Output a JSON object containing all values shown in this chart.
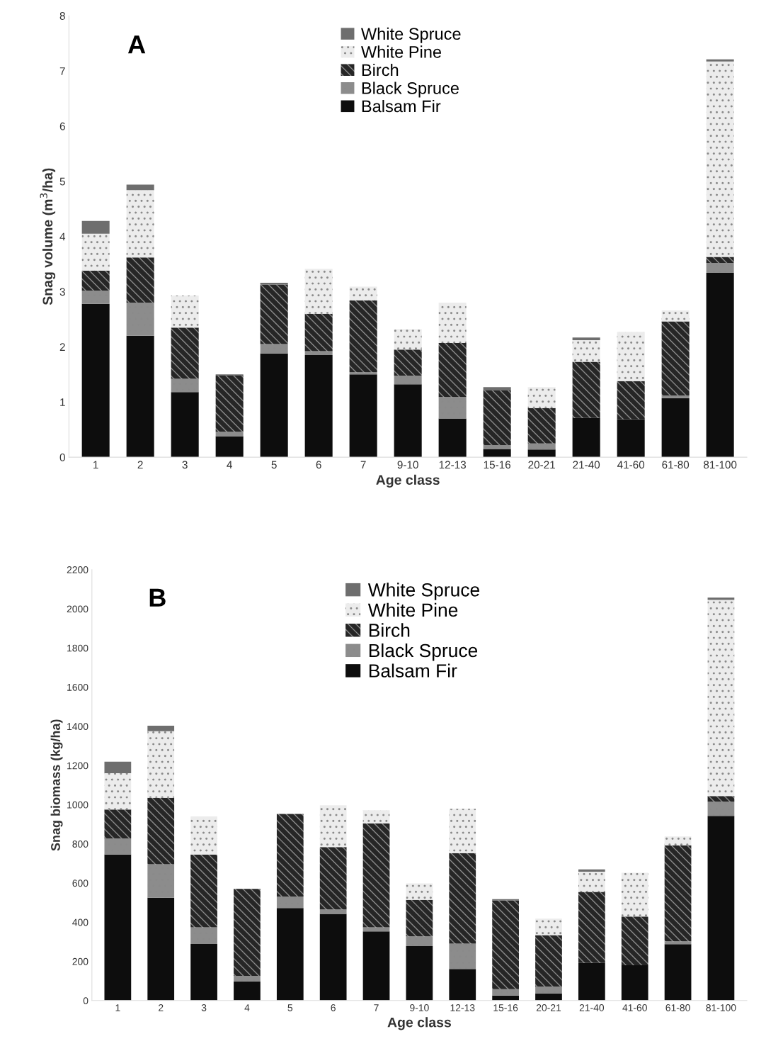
{
  "chart_data": [
    {
      "type": "bar",
      "title": "A",
      "xlabel": "Age class",
      "ylabel": "Snag volume (m$^{3}$/ha)",
      "stacked": true,
      "legend": "top",
      "grid": false,
      "categories": [
        "1",
        "2",
        "3",
        "4",
        "5",
        "6",
        "7",
        "9-10",
        "12-13",
        "15-16",
        "20-21",
        "21-40",
        "41-60",
        "61-80",
        "81-100"
      ],
      "ylim": [
        0,
        8
      ],
      "yticks": [
        0,
        1,
        2,
        3,
        4,
        5,
        6,
        7,
        8
      ],
      "series": [
        {
          "name": "Balsam Fir",
          "color": "#0d0d0d",
          "values": [
            2.78,
            2.2,
            1.18,
            0.38,
            1.88,
            1.85,
            1.5,
            1.32,
            0.7,
            0.15,
            0.14,
            0.71,
            0.69,
            1.07,
            3.34
          ]
        },
        {
          "name": "Black Spruce",
          "color": "#8c8c8c",
          "values": [
            0.24,
            0.6,
            0.24,
            0.08,
            0.17,
            0.07,
            0.04,
            0.16,
            0.39,
            0.07,
            0.11,
            0,
            0,
            0.05,
            0.18
          ]
        },
        {
          "name": "Birch",
          "color": "#262626",
          "values": [
            0.36,
            0.82,
            0.93,
            1.02,
            1.08,
            0.68,
            1.3,
            0.47,
            0.98,
            0.99,
            0.64,
            1.02,
            0.69,
            1.34,
            0.11
          ]
        },
        {
          "name": "White Pine",
          "color": "#ececec",
          "values": [
            0.67,
            1.22,
            0.58,
            0,
            0,
            0.81,
            0.25,
            0.37,
            0.73,
            0,
            0.38,
            0.39,
            0.89,
            0.2,
            3.54
          ]
        },
        {
          "name": "White Spruce",
          "color": "#6e6e6e",
          "values": [
            0.23,
            0.1,
            0,
            0.02,
            0.03,
            0,
            0,
            0,
            0,
            0.06,
            0,
            0.05,
            0,
            0,
            0.04
          ]
        }
      ]
    },
    {
      "type": "bar",
      "title": "B",
      "xlabel": "Age class",
      "ylabel": "Snag biomass (kg/ha)",
      "stacked": true,
      "legend": "top",
      "grid": false,
      "categories": [
        "1",
        "2",
        "3",
        "4",
        "5",
        "6",
        "7",
        "9-10",
        "12-13",
        "15-16",
        "20-21",
        "21-40",
        "41-60",
        "61-80",
        "81-100"
      ],
      "ylim": [
        0,
        2200
      ],
      "yticks": [
        0,
        200,
        400,
        600,
        800,
        1000,
        1200,
        1400,
        1600,
        1800,
        2000,
        2200
      ],
      "series": [
        {
          "name": "Balsam Fir",
          "color": "#0d0d0d",
          "values": [
            746,
            525,
            289,
            98,
            472,
            443,
            353,
            278,
            161,
            26,
            36,
            192,
            180,
            288,
            943
          ]
        },
        {
          "name": "Black Spruce",
          "color": "#8c8c8c",
          "values": [
            82,
            171,
            85,
            28,
            59,
            22,
            21,
            50,
            130,
            32,
            36,
            0,
            0,
            14,
            72
          ]
        },
        {
          "name": "Birch",
          "color": "#262626",
          "values": [
            147,
            339,
            372,
            444,
            422,
            319,
            531,
            186,
            462,
            453,
            262,
            363,
            249,
            490,
            29
          ]
        },
        {
          "name": "White Pine",
          "color": "#ececec",
          "values": [
            186,
            340,
            194,
            0,
            0,
            213,
            67,
            84,
            226,
            0,
            84,
            103,
            223,
            46,
            1001
          ]
        },
        {
          "name": "White Spruce",
          "color": "#6e6e6e",
          "values": [
            59,
            28,
            0,
            0,
            0,
            0,
            0,
            0,
            0,
            7,
            0,
            12,
            0,
            0,
            12
          ]
        }
      ]
    }
  ]
}
